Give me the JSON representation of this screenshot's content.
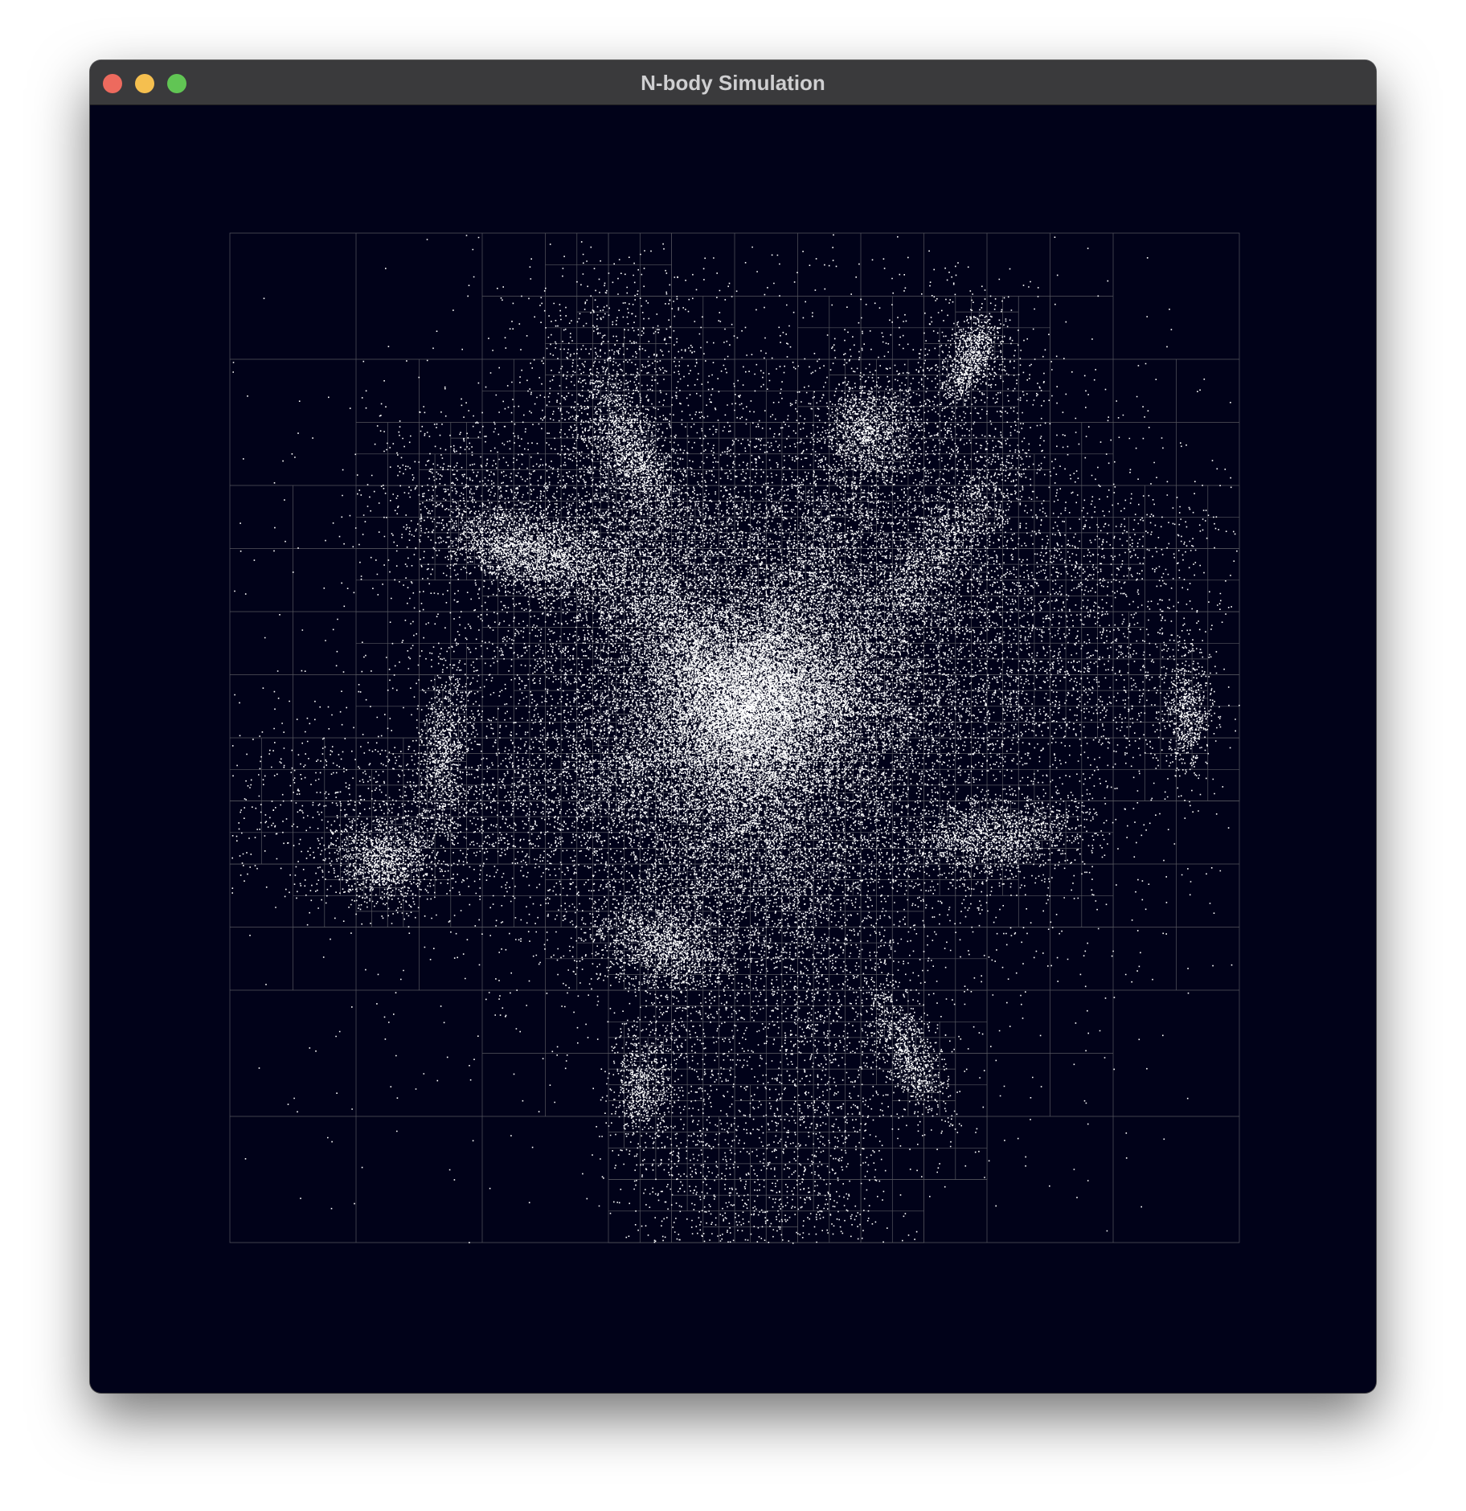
{
  "window": {
    "title": "N-body Simulation"
  },
  "traffic_lights": {
    "close_color": "#ed6a5e",
    "minimize_color": "#f5bf4f",
    "zoom_color": "#61c554"
  },
  "colors": {
    "background": "#010219",
    "grid_line": "#55565e",
    "particle": "#ffffff"
  }
}
